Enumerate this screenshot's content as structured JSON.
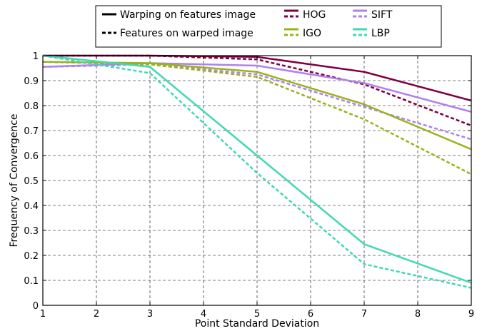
{
  "chart_data": {
    "type": "line",
    "xlabel": "Point Standard Deviation",
    "ylabel": "Frequency of Convergence",
    "xlim": [
      1,
      9
    ],
    "ylim": [
      0,
      1
    ],
    "xticks": [
      "1",
      "2",
      "3",
      "4",
      "5",
      "6",
      "7",
      "8",
      "9"
    ],
    "yticks": [
      "0",
      "0.1",
      "0.2",
      "0.3",
      "0.4",
      "0.5",
      "0.6",
      "0.7",
      "0.8",
      "0.9",
      "1"
    ],
    "grid": true,
    "legend_position": "top",
    "legend_styles": [
      {
        "label": "Warping on features image",
        "dash": "solid"
      },
      {
        "label": "Features on warped image",
        "dash": "dashed"
      }
    ],
    "x": [
      1,
      3,
      5,
      7,
      9
    ],
    "series": [
      {
        "name": "HOG",
        "color": "#800040",
        "method": "Warping on features image",
        "dash": "solid",
        "values": [
          1.0,
          1.0,
          0.995,
          0.935,
          0.82
        ]
      },
      {
        "name": "HOG",
        "color": "#800040",
        "method": "Features on warped image",
        "dash": "dashed",
        "values": [
          1.0,
          1.0,
          0.985,
          0.885,
          0.72
        ]
      },
      {
        "name": "SIFT",
        "color": "#b080f0",
        "method": "Warping on features image",
        "dash": "solid",
        "values": [
          0.955,
          0.97,
          0.96,
          0.89,
          0.775
        ]
      },
      {
        "name": "SIFT",
        "color": "#b080f0",
        "method": "Features on warped image",
        "dash": "dashed",
        "values": [
          0.955,
          0.965,
          0.925,
          0.795,
          0.665
        ]
      },
      {
        "name": "IGO",
        "color": "#99b31a",
        "method": "Warping on features image",
        "dash": "solid",
        "values": [
          0.975,
          0.97,
          0.935,
          0.805,
          0.625
        ]
      },
      {
        "name": "IGO",
        "color": "#99b31a",
        "method": "Features on warped image",
        "dash": "dashed",
        "values": [
          0.975,
          0.965,
          0.915,
          0.745,
          0.525
        ]
      },
      {
        "name": "LBP",
        "color": "#40d9b3",
        "method": "Warping on features image",
        "dash": "solid",
        "values": [
          1.0,
          0.955,
          0.6,
          0.245,
          0.09
        ]
      },
      {
        "name": "LBP",
        "color": "#40d9b3",
        "method": "Features on warped image",
        "dash": "dashed",
        "values": [
          1.0,
          0.93,
          0.53,
          0.165,
          0.07
        ]
      }
    ]
  }
}
